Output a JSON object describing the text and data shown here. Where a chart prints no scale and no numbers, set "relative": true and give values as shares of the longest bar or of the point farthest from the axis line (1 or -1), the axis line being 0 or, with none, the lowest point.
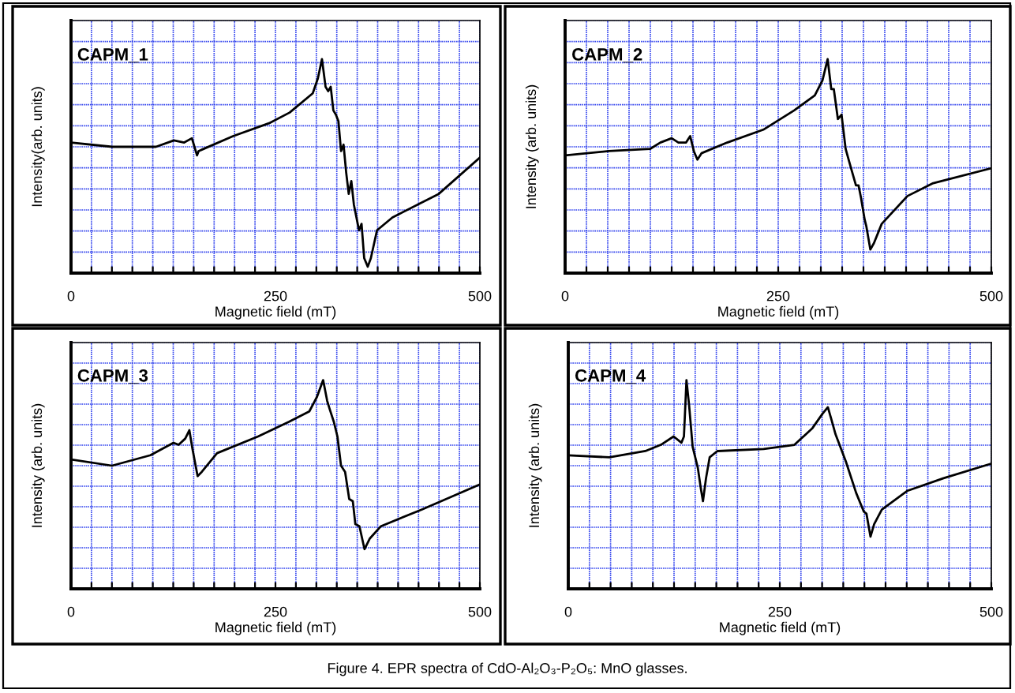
{
  "chart_data": [
    {
      "type": "line",
      "title": "CAPM_1",
      "xlabel": "Magnetic field (mT)",
      "ylabel": "Intensity(arb. units)",
      "relative": true,
      "xlim": [
        0,
        500
      ],
      "xticks": [
        0,
        {
          "value": 25,
          "label": null
        },
        {
          "value": 50,
          "label": null
        },
        {
          "value": 75,
          "label": null
        },
        {
          "value": 100,
          "label": null
        },
        {
          "value": 125,
          "label": null
        },
        {
          "value": 150,
          "label": null
        },
        {
          "value": 175,
          "label": null
        },
        {
          "value": 200,
          "label": null
        },
        {
          "value": 225,
          "label": null
        },
        250,
        {
          "value": 275,
          "label": null
        },
        {
          "value": 300,
          "label": null
        },
        {
          "value": 325,
          "label": null
        },
        {
          "value": 350,
          "label": null
        },
        {
          "value": 375,
          "label": null
        },
        {
          "value": 400,
          "label": null
        },
        {
          "value": 425,
          "label": null
        },
        {
          "value": 450,
          "label": null
        },
        {
          "value": 475,
          "label": null
        },
        500
      ],
      "grid": true,
      "tick_labels": "x",
      "series": [
        {
          "color": "#000000",
          "x": [
            0,
            50.3,
            103.8,
            125.8,
            138.4,
            147.8,
            154.1,
            156,
            198.1,
            242.1,
            267.3,
            295.6,
            301.9,
            306.9,
            311.3,
            314.5,
            317.6,
            320.8,
            323.9,
            327,
            330.2,
            333.3,
            336.5,
            339.6,
            342.8,
            345.9,
            352.2,
            355.3,
            358.5,
            362.9,
            366.7,
            374.2,
            393.1,
            449.7,
            500
          ],
          "values": [
            0.61,
            0.59,
            0.59,
            0.62,
            0.61,
            0.63,
            0.55,
            0.57,
            0.64,
            0.7,
            0.75,
            0.84,
            0.91,
            1.0,
            0.87,
            0.85,
            0.87,
            0.76,
            0.74,
            0.71,
            0.57,
            0.6,
            0.47,
            0.37,
            0.43,
            0.32,
            0.2,
            0.23,
            0.07,
            0.03,
            0.07,
            0.2,
            0.26,
            0.37,
            0.54
          ]
        }
      ]
    },
    {
      "type": "line",
      "title": "CAPM_2",
      "xlabel": "Magnetic field (mT)",
      "ylabel": "Intensity (arb. units)",
      "relative": true,
      "xlim": [
        0,
        500
      ],
      "xticks": [
        0,
        {
          "value": 25,
          "label": null
        },
        {
          "value": 50,
          "label": null
        },
        {
          "value": 75,
          "label": null
        },
        {
          "value": 100,
          "label": null
        },
        {
          "value": 125,
          "label": null
        },
        {
          "value": 150,
          "label": null
        },
        {
          "value": 175,
          "label": null
        },
        {
          "value": 200,
          "label": null
        },
        {
          "value": 225,
          "label": null
        },
        250,
        {
          "value": 275,
          "label": null
        },
        {
          "value": 300,
          "label": null
        },
        {
          "value": 325,
          "label": null
        },
        {
          "value": 350,
          "label": null
        },
        {
          "value": 375,
          "label": null
        },
        {
          "value": 400,
          "label": null
        },
        {
          "value": 425,
          "label": null
        },
        {
          "value": 450,
          "label": null
        },
        {
          "value": 475,
          "label": null
        },
        500
      ],
      "grid": true,
      "tick_labels": "x",
      "series": [
        {
          "color": "#000000",
          "x": [
            0,
            51.3,
            99.6,
            111.7,
            125,
            132.9,
            141.9,
            146.7,
            151,
            155.2,
            160,
            190.2,
            232.5,
            268.7,
            292.9,
            301.9,
            308,
            312.2,
            315.2,
            320,
            324.3,
            329.1,
            334,
            341.2,
            344.2,
            347.2,
            351.4,
            353.3,
            358.1,
            362.3,
            371.4,
            401.6,
            431.8,
            500
          ],
          "values": [
            0.55,
            0.57,
            0.58,
            0.61,
            0.63,
            0.61,
            0.61,
            0.64,
            0.57,
            0.53,
            0.56,
            0.61,
            0.67,
            0.76,
            0.83,
            0.9,
            1.0,
            0.86,
            0.86,
            0.72,
            0.74,
            0.58,
            0.51,
            0.41,
            0.41,
            0.35,
            0.25,
            0.22,
            0.11,
            0.14,
            0.23,
            0.36,
            0.42,
            0.49
          ]
        }
      ]
    },
    {
      "type": "line",
      "title": "CAPM_3",
      "xlabel": "Magnetic field (mT)",
      "ylabel": "Intensity (arb. units)",
      "relative": true,
      "xlim": [
        0,
        500
      ],
      "xticks": [
        0,
        {
          "value": 25,
          "label": null
        },
        {
          "value": 50,
          "label": null
        },
        {
          "value": 75,
          "label": null
        },
        {
          "value": 100,
          "label": null
        },
        {
          "value": 125,
          "label": null
        },
        {
          "value": 150,
          "label": null
        },
        {
          "value": 175,
          "label": null
        },
        {
          "value": 200,
          "label": null
        },
        {
          "value": 225,
          "label": null
        },
        250,
        {
          "value": 275,
          "label": null
        },
        {
          "value": 300,
          "label": null
        },
        {
          "value": 325,
          "label": null
        },
        {
          "value": 350,
          "label": null
        },
        {
          "value": 375,
          "label": null
        },
        {
          "value": 400,
          "label": null
        },
        {
          "value": 425,
          "label": null
        },
        {
          "value": 450,
          "label": null
        },
        {
          "value": 475,
          "label": null
        },
        500
      ],
      "grid": true,
      "tick_labels": "x",
      "series": [
        {
          "color": "#000000",
          "x": [
            0,
            50.1,
            97.1,
            115.9,
            125.3,
            131.6,
            139.7,
            144.7,
            148.5,
            154.8,
            159.8,
            178.6,
            228.7,
            266.3,
            291.4,
            300.8,
            308.3,
            313.3,
            316.4,
            321.4,
            325.8,
            330.2,
            335.2,
            340.2,
            344.6,
            347.7,
            352.7,
            358.9,
            365.2,
            379,
            429.2,
            500
          ],
          "values": [
            0.62,
            0.59,
            0.64,
            0.68,
            0.7,
            0.69,
            0.72,
            0.76,
            0.67,
            0.54,
            0.56,
            0.65,
            0.73,
            0.8,
            0.85,
            0.92,
            1.0,
            0.9,
            0.86,
            0.8,
            0.73,
            0.59,
            0.56,
            0.43,
            0.42,
            0.31,
            0.3,
            0.19,
            0.24,
            0.3,
            0.38,
            0.5
          ]
        }
      ]
    },
    {
      "type": "line",
      "title": "CAPM_4",
      "xlabel": "Magnetic field (mT)",
      "ylabel": "Intensity (arb. units)",
      "relative": true,
      "xlim": [
        0,
        500
      ],
      "xticks": [
        0,
        {
          "value": 25,
          "label": null
        },
        {
          "value": 50,
          "label": null
        },
        {
          "value": 75,
          "label": null
        },
        {
          "value": 100,
          "label": null
        },
        {
          "value": 125,
          "label": null
        },
        {
          "value": 150,
          "label": null
        },
        {
          "value": 175,
          "label": null
        },
        {
          "value": 200,
          "label": null
        },
        {
          "value": 225,
          "label": null
        },
        250,
        {
          "value": 275,
          "label": null
        },
        {
          "value": 300,
          "label": null
        },
        {
          "value": 325,
          "label": null
        },
        {
          "value": 350,
          "label": null
        },
        {
          "value": 375,
          "label": null
        },
        {
          "value": 400,
          "label": null
        },
        {
          "value": 425,
          "label": null
        },
        {
          "value": 450,
          "label": null
        },
        {
          "value": 475,
          "label": null
        },
        500
      ],
      "grid": true,
      "tick_labels": "x",
      "annotations": [
        "Figure 4. EPR spectra of CdO-Al₂O₃-P₂O₅: MnO glasses."
      ],
      "series": [
        {
          "color": "#000000",
          "x": [
            0,
            48.6,
            91.1,
            109.4,
            124.5,
            133.7,
            136.7,
            139.7,
            142.8,
            147,
            153.1,
            156.7,
            159.2,
            162.8,
            167.1,
            176.2,
            230.9,
            267.3,
            288.6,
            300.7,
            306.8,
            311.1,
            315.9,
            328.1,
            340.2,
            349.3,
            352.4,
            357.2,
            361.5,
            370.6,
            401,
            443.5,
            500
          ],
          "values": [
            0.64,
            0.63,
            0.66,
            0.69,
            0.73,
            0.7,
            0.73,
            1.0,
            0.88,
            0.68,
            0.58,
            0.48,
            0.42,
            0.53,
            0.63,
            0.66,
            0.67,
            0.69,
            0.77,
            0.84,
            0.87,
            0.81,
            0.74,
            0.61,
            0.46,
            0.37,
            0.36,
            0.25,
            0.31,
            0.38,
            0.47,
            0.53,
            0.6
          ]
        }
      ]
    }
  ]
}
